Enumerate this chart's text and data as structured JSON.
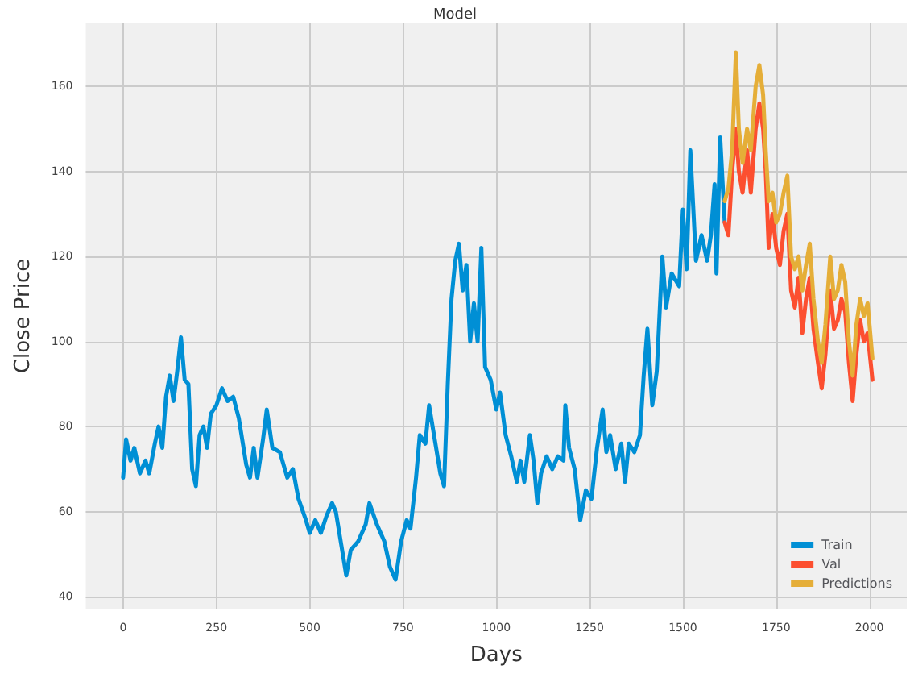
{
  "chart_data": {
    "type": "line",
    "title": "Model",
    "xlabel": "Days",
    "ylabel": "Close Price",
    "xlim": [
      -100,
      2100
    ],
    "ylim": [
      37,
      175
    ],
    "xticks": [
      0,
      250,
      500,
      750,
      1000,
      1250,
      1500,
      1750,
      2000
    ],
    "yticks": [
      40,
      60,
      80,
      100,
      120,
      140,
      160
    ],
    "grid": true,
    "legend": "bottom right",
    "marker": "none",
    "line_style": "solid",
    "series": [
      {
        "name": "Train",
        "color": "#008fd5",
        "x": [
          0,
          8,
          20,
          30,
          45,
          60,
          70,
          85,
          95,
          105,
          115,
          125,
          135,
          145,
          155,
          165,
          175,
          185,
          195,
          205,
          215,
          225,
          235,
          250,
          265,
          280,
          295,
          310,
          330,
          340,
          350,
          360,
          375,
          385,
          400,
          420,
          440,
          455,
          470,
          490,
          500,
          515,
          530,
          545,
          560,
          570,
          585,
          598,
          610,
          630,
          650,
          660,
          680,
          700,
          715,
          730,
          745,
          760,
          770,
          785,
          795,
          810,
          820,
          835,
          850,
          860,
          870,
          880,
          890,
          900,
          910,
          920,
          930,
          940,
          950,
          960,
          970,
          985,
          1000,
          1010,
          1025,
          1040,
          1055,
          1065,
          1075,
          1090,
          1100,
          1110,
          1120,
          1135,
          1150,
          1165,
          1180,
          1185,
          1195,
          1210,
          1225,
          1240,
          1255,
          1270,
          1285,
          1295,
          1305,
          1320,
          1335,
          1345,
          1355,
          1370,
          1385,
          1395,
          1405,
          1418,
          1430,
          1445,
          1455,
          1470,
          1490,
          1500,
          1510,
          1520,
          1535,
          1550,
          1565,
          1575,
          1585,
          1590,
          1600,
          1612
        ],
        "values": [
          68,
          77,
          72,
          75,
          69,
          72,
          69,
          76,
          80,
          75,
          87,
          92,
          86,
          93,
          101,
          91,
          90,
          70,
          66,
          78,
          80,
          75,
          83,
          85,
          89,
          86,
          87,
          82,
          71,
          68,
          75,
          68,
          77,
          84,
          75,
          74,
          68,
          70,
          63,
          58,
          55,
          58,
          55,
          59,
          62,
          60,
          52,
          45,
          51,
          53,
          57,
          62,
          57,
          53,
          47,
          44,
          53,
          58,
          56,
          68,
          78,
          76,
          85,
          77,
          69,
          66,
          90,
          110,
          119,
          123,
          112,
          118,
          100,
          109,
          100,
          122,
          94,
          91,
          84,
          88,
          78,
          73,
          67,
          72,
          67,
          78,
          72,
          62,
          69,
          73,
          70,
          73,
          72,
          85,
          75,
          70,
          58,
          65,
          63,
          75,
          84,
          74,
          78,
          70,
          76,
          67,
          76,
          74,
          78,
          92,
          103,
          85,
          93,
          120,
          108,
          116,
          113,
          131,
          117,
          145,
          119,
          125,
          119,
          125,
          137,
          116,
          148,
          128
        ]
      },
      {
        "name": "Val",
        "color": "#fc4f30",
        "x": [
          1612,
          1622,
          1632,
          1642,
          1650,
          1660,
          1672,
          1682,
          1695,
          1705,
          1715,
          1722,
          1730,
          1740,
          1750,
          1760,
          1770,
          1780,
          1790,
          1800,
          1810,
          1820,
          1830,
          1840,
          1850,
          1862,
          1872,
          1882,
          1895,
          1905,
          1915,
          1925,
          1935,
          1945,
          1955,
          1965,
          1975,
          1985,
          1995,
          2008
        ],
        "values": [
          128,
          125,
          140,
          150,
          140,
          135,
          145,
          135,
          150,
          156,
          150,
          140,
          122,
          130,
          122,
          118,
          126,
          130,
          112,
          108,
          115,
          102,
          110,
          115,
          103,
          95,
          89,
          97,
          112,
          103,
          105,
          110,
          107,
          95,
          86,
          97,
          105,
          100,
          102,
          91
        ]
      },
      {
        "name": "Predictions",
        "color": "#e5ae38",
        "x": [
          1612,
          1622,
          1632,
          1642,
          1650,
          1660,
          1672,
          1682,
          1695,
          1705,
          1715,
          1722,
          1730,
          1740,
          1750,
          1760,
          1770,
          1780,
          1790,
          1800,
          1810,
          1820,
          1830,
          1840,
          1850,
          1862,
          1872,
          1882,
          1895,
          1905,
          1915,
          1925,
          1935,
          1945,
          1955,
          1965,
          1975,
          1985,
          1995,
          2008
        ],
        "values": [
          133,
          136,
          145,
          168,
          150,
          142,
          150,
          145,
          160,
          165,
          158,
          145,
          133,
          135,
          128,
          130,
          135,
          139,
          120,
          117,
          120,
          112,
          118,
          123,
          110,
          100,
          95,
          104,
          120,
          110,
          112,
          118,
          114,
          100,
          92,
          104,
          110,
          106,
          109,
          96
        ]
      }
    ]
  }
}
